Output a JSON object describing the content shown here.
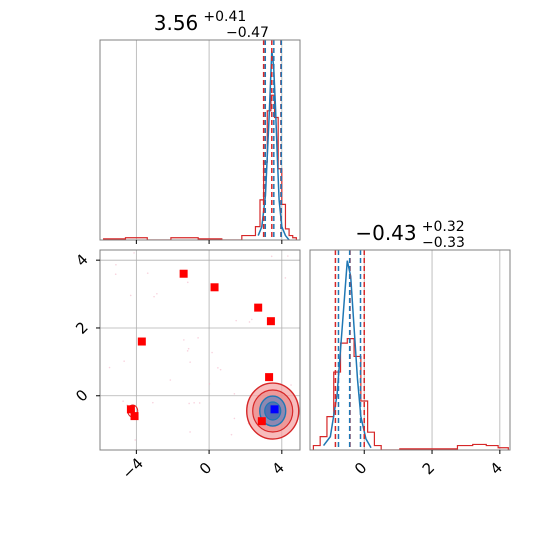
{
  "chart_data": {
    "type": "corner",
    "panels": [
      {
        "position": "top-left",
        "type": "histogram",
        "title": {
          "main": "3.56",
          "sup": "+0.41",
          "sub": "−0.47"
        },
        "xlim": [
          -6,
          5
        ],
        "xticks": [
          -4,
          0,
          4
        ],
        "grid": true,
        "quantile_lines": {
          "blue": [
            3.09,
            3.56,
            3.97
          ],
          "red": [
            3.0,
            3.45,
            3.95
          ]
        },
        "blue_hist": {
          "x": [
            2.7,
            2.9,
            3.1,
            3.3,
            3.45,
            3.55,
            3.65,
            3.75,
            3.85,
            4.0,
            4.2,
            4.4
          ],
          "y": [
            0.02,
            0.06,
            0.2,
            0.55,
            0.85,
            0.78,
            0.6,
            0.38,
            0.18,
            0.06,
            0.02,
            0.0
          ]
        },
        "red_hist": {
          "x": [
            -5.2,
            -4.0,
            -2.8,
            -1.4,
            0.2,
            1.2,
            2.4,
            2.7,
            2.9,
            3.1,
            3.3,
            3.5,
            3.7,
            3.9,
            4.1,
            4.3,
            4.5,
            4.7
          ],
          "y": [
            0.005,
            0.01,
            0.0,
            0.01,
            0.005,
            0.0,
            0.02,
            0.06,
            0.18,
            0.35,
            0.58,
            0.65,
            0.55,
            0.32,
            0.16,
            0.05,
            0.02,
            0.01
          ]
        }
      },
      {
        "position": "bottom-left",
        "type": "scatter-contour",
        "xlim": [
          -6,
          5
        ],
        "ylim": [
          -1.6,
          4.3
        ],
        "xticks": [
          -4,
          0,
          4
        ],
        "yticks": [
          0,
          2,
          4
        ],
        "grid": true,
        "red_markers": {
          "x": [
            -1.4,
            0.3,
            2.7,
            3.4,
            -3.7,
            3.3,
            2.9,
            -4.3,
            -4.1
          ],
          "y": [
            3.6,
            3.2,
            2.6,
            2.2,
            1.6,
            0.55,
            -0.75,
            -0.4,
            -0.6
          ]
        },
        "blue_marker": {
          "x": [
            3.6
          ],
          "y": [
            -0.4
          ]
        },
        "contour_center": [
          3.5,
          -0.45
        ]
      },
      {
        "position": "bottom-right",
        "type": "histogram",
        "title": {
          "main": "−0.43",
          "sup": "+0.32",
          "sub": "−0.33"
        },
        "xlim": [
          -1.6,
          4.3
        ],
        "xticks": [
          0,
          2,
          4
        ],
        "grid": true,
        "quantile_lines": {
          "blue": [
            -0.76,
            -0.43,
            -0.11
          ],
          "red": [
            -0.85,
            -0.42,
            0.0
          ]
        },
        "blue_hist": {
          "x": [
            -1.2,
            -1.0,
            -0.8,
            -0.65,
            -0.5,
            -0.4,
            -0.3,
            -0.2,
            -0.1,
            0.05,
            0.2
          ],
          "y": [
            0.02,
            0.06,
            0.25,
            0.55,
            0.85,
            0.78,
            0.55,
            0.32,
            0.15,
            0.05,
            0.01
          ]
        },
        "red_hist": {
          "x": [
            -1.4,
            -1.2,
            -1.0,
            -0.8,
            -0.6,
            -0.4,
            -0.2,
            0.0,
            0.2,
            0.4,
            0.6,
            1.5,
            2.5,
            3.0,
            3.4,
            3.8,
            4.1
          ],
          "y": [
            0.02,
            0.06,
            0.15,
            0.35,
            0.48,
            0.5,
            0.42,
            0.22,
            0.08,
            0.02,
            0.0,
            0.005,
            0.005,
            0.02,
            0.025,
            0.02,
            0.01
          ]
        }
      }
    ],
    "colors": {
      "blue": "#1f77b4",
      "red": "#d62728",
      "marker_red": "#ff0000",
      "marker_blue": "#0000ff",
      "grid": "#b0b0b0"
    }
  }
}
